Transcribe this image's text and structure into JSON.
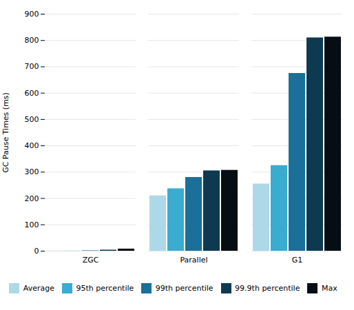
{
  "chart_data": {
    "type": "bar",
    "ylabel": "GC Pause Times (ms)",
    "categories": [
      "ZGC",
      "Parallel",
      "G1"
    ],
    "series": [
      {
        "name": "Average",
        "color": "#add8e8",
        "values": [
          0.5,
          210,
          255
        ]
      },
      {
        "name": "95th percentile",
        "color": "#3aaccf",
        "values": [
          0.5,
          237,
          325
        ]
      },
      {
        "name": "99th percentile",
        "color": "#1a7098",
        "values": [
          1.5,
          280,
          675
        ]
      },
      {
        "name": "99.9th percentile",
        "color": "#0d3a50",
        "values": [
          4,
          305,
          810
        ]
      },
      {
        "name": "Max",
        "color": "#060e14",
        "values": [
          8,
          307,
          813
        ]
      }
    ],
    "ylim": [
      0,
      900
    ],
    "yticks": [
      0,
      100,
      200,
      300,
      400,
      500,
      600,
      700,
      800,
      900
    ],
    "grid": true,
    "legend": "bottom"
  }
}
